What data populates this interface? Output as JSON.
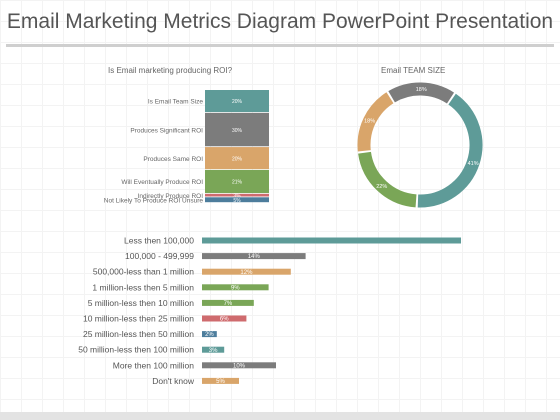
{
  "title": "Email Marketing Metrics Diagram PowerPoint Presentation",
  "colors": {
    "teal": "#5e9b98",
    "gray": "#7c7c7c",
    "orange": "#d9a56a",
    "green": "#7aa657",
    "red": "#cf6b6e",
    "blue": "#4d7d9c"
  },
  "chart_data": [
    {
      "type": "bar",
      "stacked": true,
      "title": "Is Email marketing producing ROI?",
      "categories": [
        "Is Email Team Size",
        "Produces Significant ROI",
        "Produces Same ROI",
        "Will Eventually Produce ROI",
        "Indirectly Produce ROI",
        "Not Likely To Produce ROI Unsure"
      ],
      "values": [
        20,
        30,
        20,
        21,
        3,
        5
      ],
      "labels": [
        "20%",
        "30%",
        "20%",
        "21%",
        "3%",
        "5%"
      ],
      "colors": [
        "#5e9b98",
        "#7c7c7c",
        "#d9a56a",
        "#7aa657",
        "#cf6b6e",
        "#4d7d9c"
      ]
    },
    {
      "type": "pie",
      "donut": true,
      "title": "Email TEAM SIZE",
      "values": [
        41,
        22,
        18,
        18
      ],
      "labels": [
        "41%",
        "22%",
        "18%",
        "18%"
      ],
      "colors": [
        "#5e9b98",
        "#7aa657",
        "#d9a56a",
        "#7c7c7c"
      ]
    },
    {
      "type": "bar",
      "orientation": "horizontal",
      "categories": [
        "Less then 100,000",
        "100,000 - 499,999",
        "500,000-less than 1 million",
        "1 million-less then 5 million",
        "5 million-less then 10 million",
        "10 million-less then 25 million",
        "25 million-less then 50 million",
        "50 million-less then 100 million",
        "More then 100 million",
        "Don't know"
      ],
      "values": [
        35,
        14,
        12,
        9,
        7,
        6,
        2,
        3,
        10,
        5
      ],
      "labels": [
        "",
        "14%",
        "12%",
        "9%",
        "7%",
        "6%",
        "2%",
        "3%",
        "10%",
        "5%"
      ],
      "colors": [
        "#5e9b98",
        "#7c7c7c",
        "#d9a56a",
        "#7aa657",
        "#7aa657",
        "#cf6b6e",
        "#4d7d9c",
        "#5e9b98",
        "#7c7c7c",
        "#d9a56a"
      ]
    }
  ]
}
